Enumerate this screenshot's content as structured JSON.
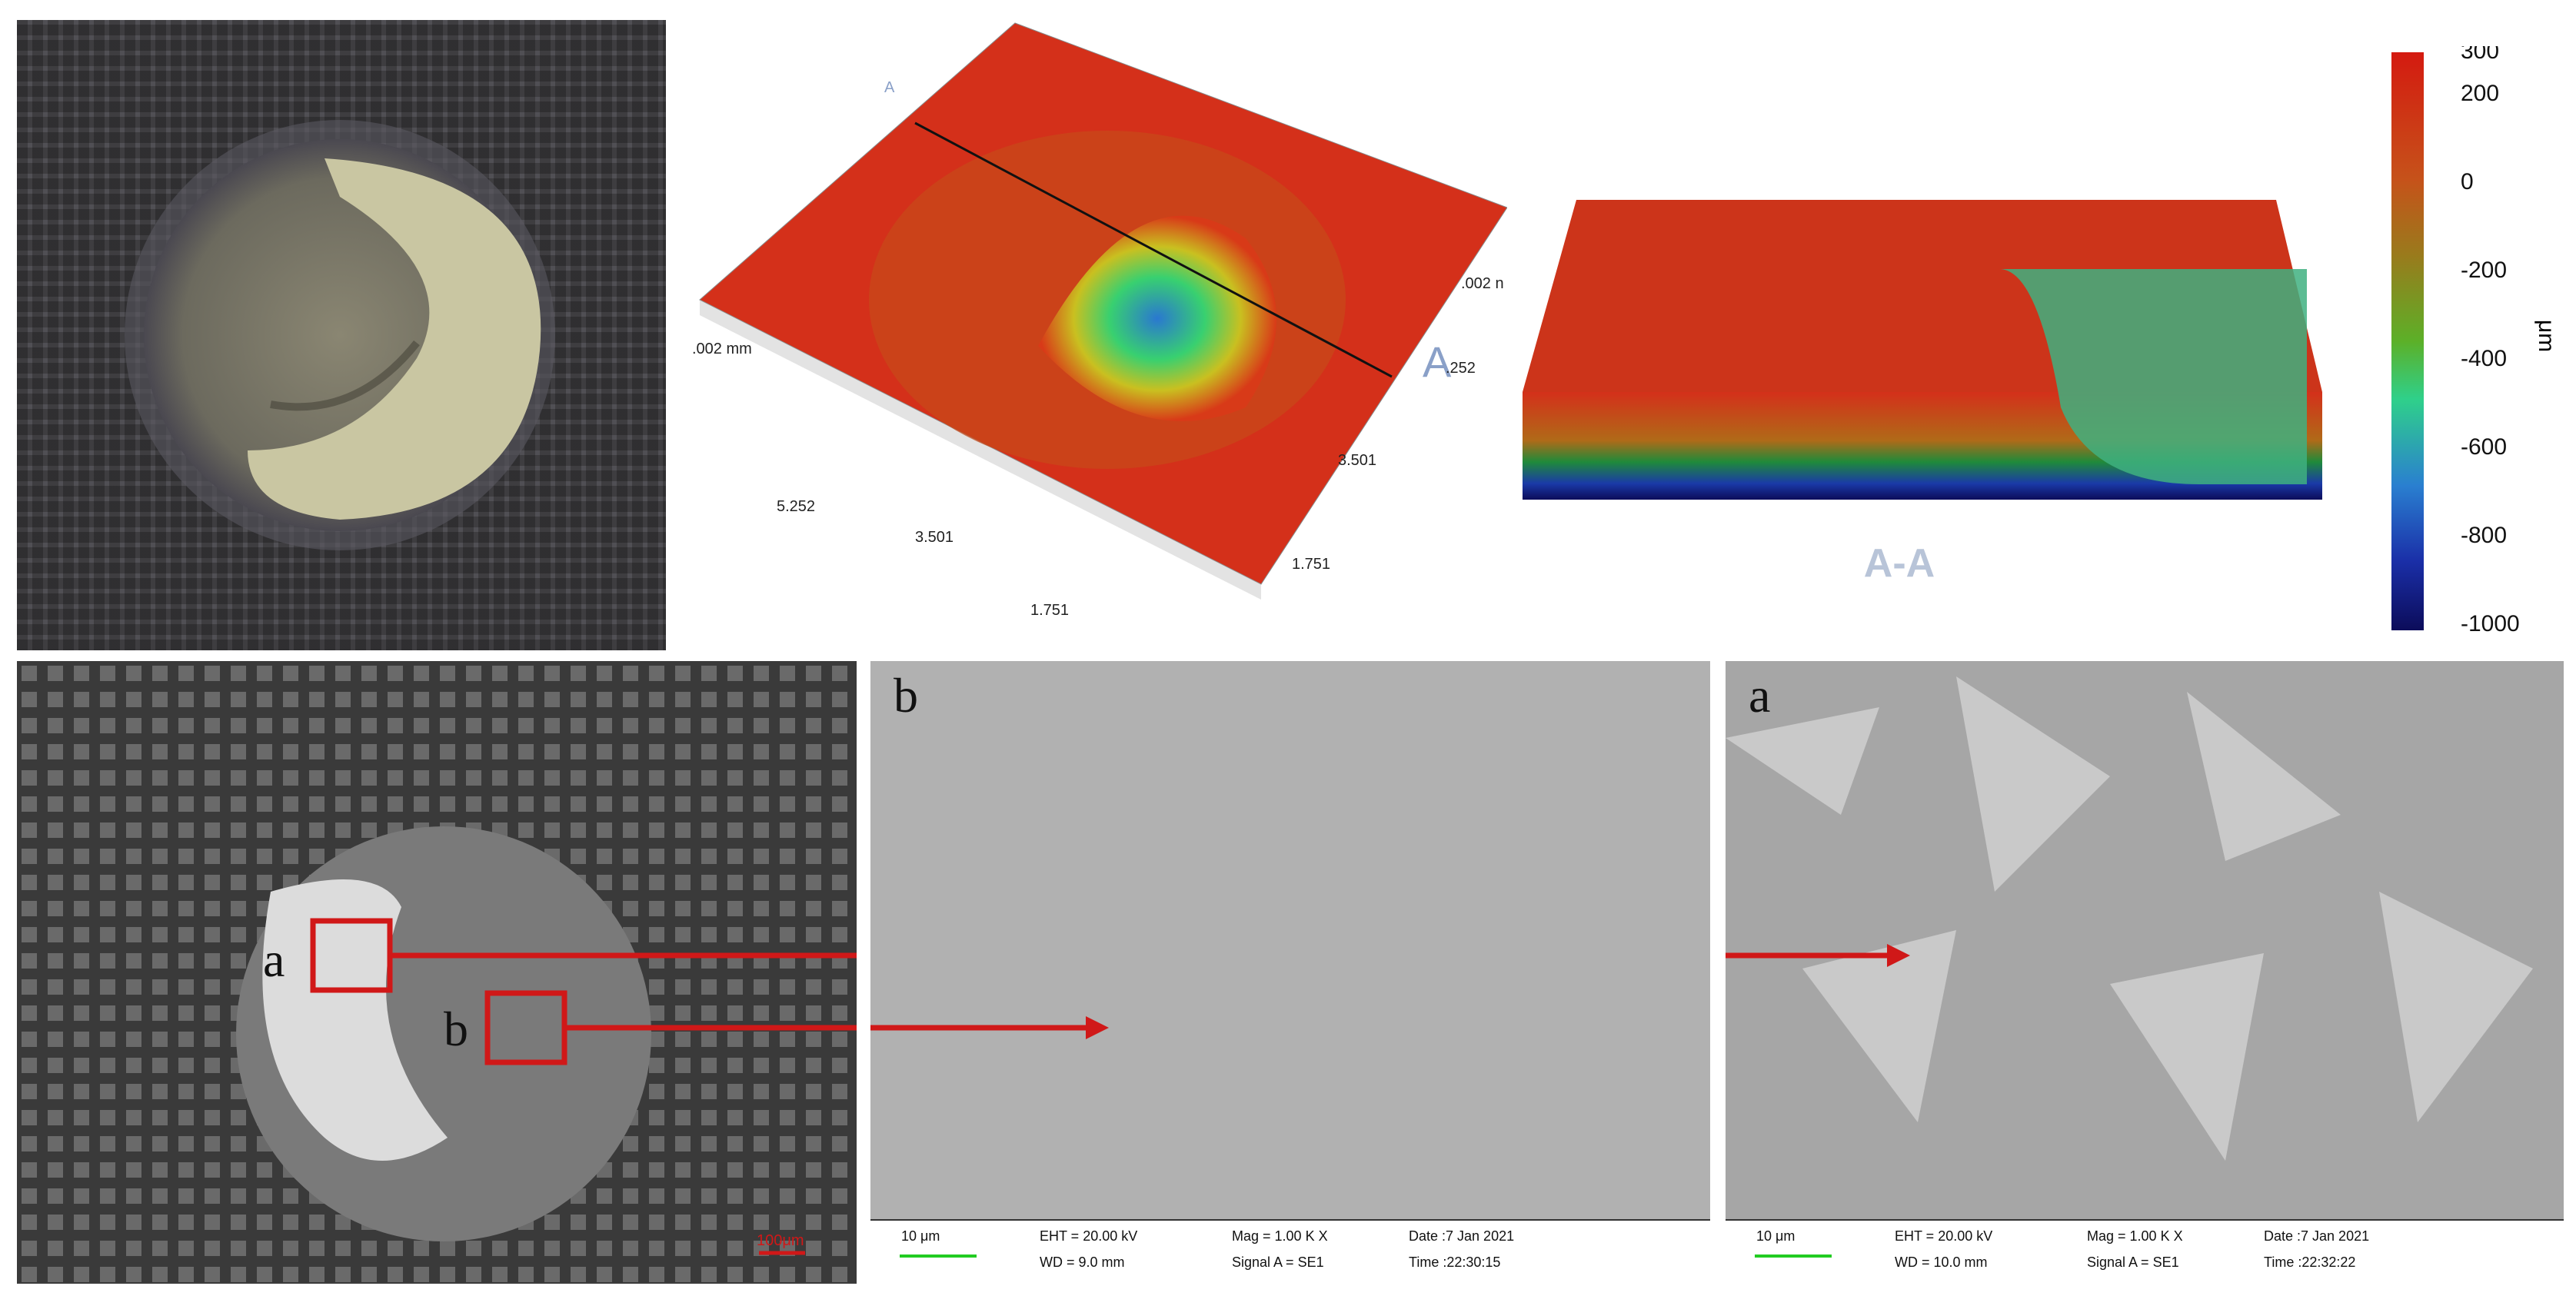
{
  "photo": {
    "description_icon": "crater-photo-icon"
  },
  "topo": {
    "marker_a_top": "A",
    "marker_a_right": "A",
    "axis_ticks": [
      "5.252",
      "3.501",
      "1.751",
      "3.501",
      "1.751",
      ".002 mm",
      ".002 n",
      ".252"
    ]
  },
  "section": {
    "label": "A-A"
  },
  "colorbar": {
    "unit": "μm",
    "ticks": [
      "300",
      "200",
      "0",
      "-200",
      "-400",
      "-600",
      "-800",
      "-1000"
    ],
    "colors": [
      "#d41a10",
      "#c6521a",
      "#9a7a1c",
      "#5cb028",
      "#2fd08a",
      "#2a7fd0",
      "#1a2fa8",
      "#0c0c5a"
    ]
  },
  "overview": {
    "label_a": "a",
    "label_b": "b",
    "scale": "100μm",
    "arrow_color": "#d01818"
  },
  "sem_b": {
    "letter": "b",
    "scale": "10 μm",
    "eht": "EHT = 20.00 kV",
    "wd": "WD =  9.0 mm",
    "mag": "Mag =    1.00 K X",
    "signal": "Signal A = SE1",
    "date": "Date :7 Jan 2021",
    "time": "Time :22:30:15"
  },
  "sem_a": {
    "letter": "a",
    "scale": "10 μm",
    "eht": "EHT = 20.00 kV",
    "wd": "WD = 10.0 mm",
    "mag": "Mag =    1.00 K X",
    "signal": "Signal A = SE1",
    "date": "Date :7 Jan 2021",
    "time": "Time :22:32:22"
  }
}
